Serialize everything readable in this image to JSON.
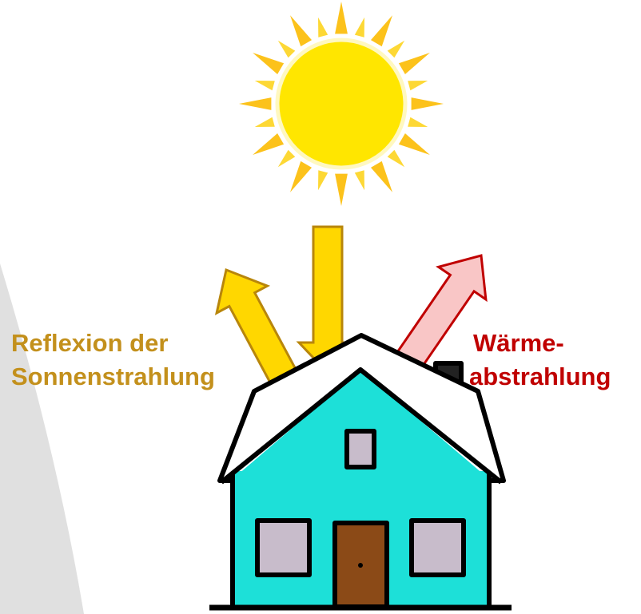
{
  "left_label": {
    "line1": "Reflexion der",
    "line2": "Sonnenstrahlung"
  },
  "right_label": {
    "line1": "Wärme-",
    "line2": "abstrahlung"
  }
}
